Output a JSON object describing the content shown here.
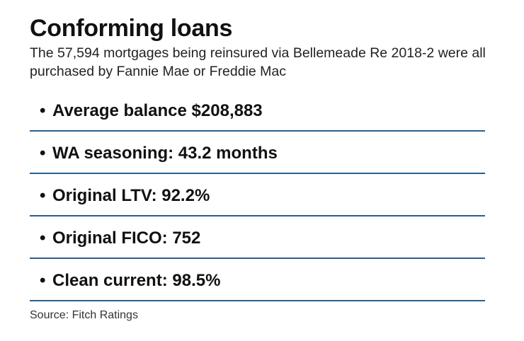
{
  "header": {
    "title": "Conforming loans",
    "subtitle": "The 57,594 mortgages being reinsured via Bellemeade Re 2018-2 were all purchased by Fannie Mae or Freddie Mac"
  },
  "bullet_glyph": "•",
  "stats": [
    "Average balance $208,883",
    "WA seasoning: 43.2 months",
    "Original LTV: 92.2%",
    "Original FICO: 752",
    "Clean current: 98.5%"
  ],
  "footer": {
    "source": "Source: Fitch Ratings"
  },
  "colors": {
    "divider": "#2a5f8f",
    "text": "#111111"
  }
}
